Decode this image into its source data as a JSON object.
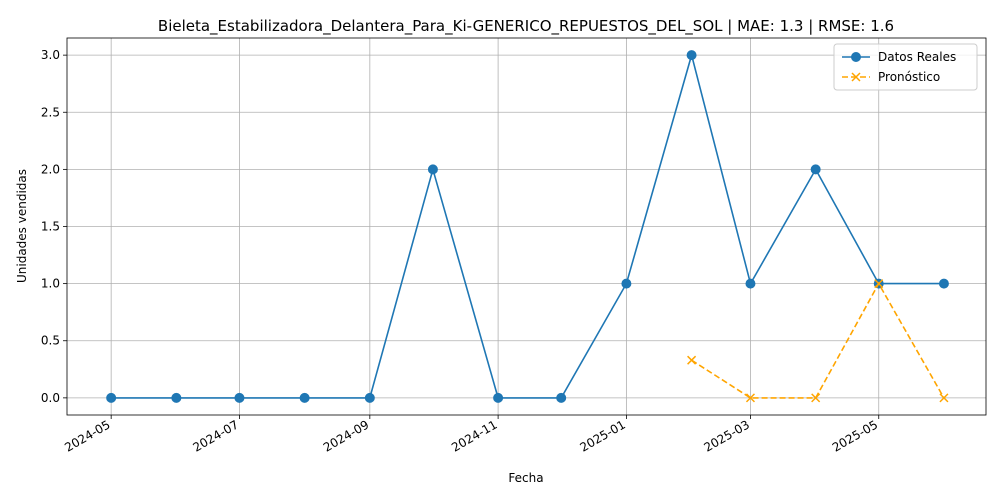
{
  "chart_data": {
    "type": "line",
    "title": "Bieleta_Estabilizadora_Delantera_Para_Ki-GENERICO_REPUESTOS_DEL_SOL | MAE: 1.3 | RMSE: 1.6",
    "xlabel": "Fecha",
    "ylabel": "Unidades vendidas",
    "ylim": [
      -0.15,
      3.15
    ],
    "xlim": [
      "2024-04-10",
      "2025-06-21"
    ],
    "grid": true,
    "legend_position": "top-right",
    "x_ticks": [
      "2024-05",
      "2024-07",
      "2024-09",
      "2024-11",
      "2025-01",
      "2025-03",
      "2025-05"
    ],
    "x_tick_dates": [
      "2024-05-01",
      "2024-07-01",
      "2024-09-01",
      "2024-11-01",
      "2025-01-01",
      "2025-03-01",
      "2025-05-01"
    ],
    "y_ticks": [
      "0.0",
      "0.5",
      "1.0",
      "1.5",
      "2.0",
      "2.5",
      "3.0"
    ],
    "y_tick_values": [
      0,
      0.5,
      1.0,
      1.5,
      2.0,
      2.5,
      3.0
    ],
    "series": [
      {
        "name": "Datos Reales",
        "color": "#1f77b4",
        "marker": "circle",
        "linestyle": "solid",
        "x": [
          "2024-05-01",
          "2024-06-01",
          "2024-07-01",
          "2024-08-01",
          "2024-09-01",
          "2024-10-01",
          "2024-11-01",
          "2024-12-01",
          "2025-01-01",
          "2025-02-01",
          "2025-03-01",
          "2025-04-01",
          "2025-05-01",
          "2025-06-01"
        ],
        "values": [
          0,
          0,
          0,
          0,
          0,
          2,
          0,
          0,
          1,
          3,
          1,
          2,
          1,
          1
        ]
      },
      {
        "name": "Pronóstico",
        "color": "#ffa500",
        "marker": "x",
        "linestyle": "dashed",
        "x": [
          "2025-02-01",
          "2025-03-01",
          "2025-04-01",
          "2025-05-01",
          "2025-06-01"
        ],
        "values": [
          0.33,
          0,
          0,
          1,
          0
        ]
      }
    ]
  }
}
